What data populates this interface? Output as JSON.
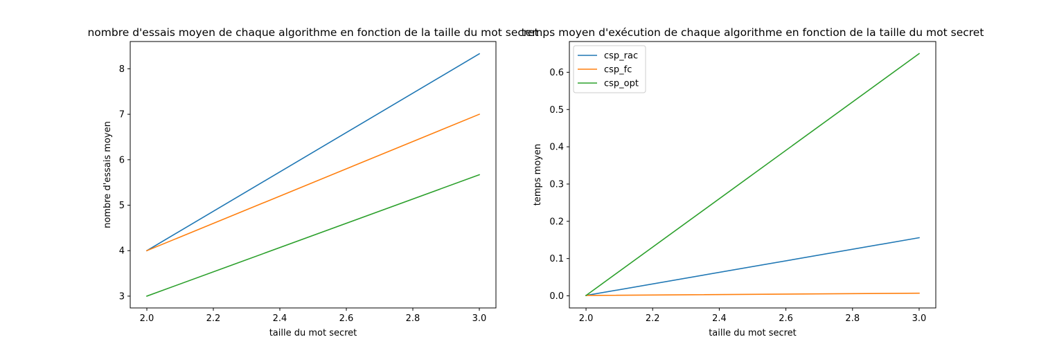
{
  "chart_data": [
    {
      "type": "line",
      "title": "nombre d'essais moyen de chaque algorithme en fonction de la taille du mot secret",
      "xlabel": "taille du mot secret",
      "ylabel": "nombre d'essais moyen",
      "x": [
        2,
        3
      ],
      "xlim": [
        1.95,
        3.05
      ],
      "ylim": [
        2.74,
        8.6
      ],
      "xticks": [
        2.0,
        2.2,
        2.4,
        2.6,
        2.8,
        3.0
      ],
      "xtick_labels": [
        "2.0",
        "2.2",
        "2.4",
        "2.6",
        "2.8",
        "3.0"
      ],
      "yticks": [
        3,
        4,
        5,
        6,
        7,
        8
      ],
      "ytick_labels": [
        "3",
        "4",
        "5",
        "6",
        "7",
        "8"
      ],
      "grid": false,
      "legend": null,
      "series": [
        {
          "values": [
            4,
            8.33
          ],
          "color": "#1f77b4"
        },
        {
          "values": [
            4,
            7.0
          ],
          "color": "#ff7f0e"
        },
        {
          "values": [
            3,
            5.67
          ],
          "color": "#2ca02c"
        }
      ]
    },
    {
      "type": "line",
      "title": "temps moyen d'exécution de chaque algorithme en fonction de la taille du mot secret",
      "xlabel": "taille du mot secret",
      "ylabel": "temps moyen",
      "x": [
        2,
        3
      ],
      "xlim": [
        1.95,
        3.05
      ],
      "ylim": [
        -0.0325,
        0.6825
      ],
      "xticks": [
        2.0,
        2.2,
        2.4,
        2.6,
        2.8,
        3.0
      ],
      "xtick_labels": [
        "2.0",
        "2.2",
        "2.4",
        "2.6",
        "2.8",
        "3.0"
      ],
      "yticks": [
        0.0,
        0.1,
        0.2,
        0.3,
        0.4,
        0.5,
        0.6
      ],
      "ytick_labels": [
        "0.0",
        "0.1",
        "0.2",
        "0.3",
        "0.4",
        "0.5",
        "0.6"
      ],
      "grid": false,
      "legend": "upper left",
      "series": [
        {
          "name": "csp_rac",
          "values": [
            0.001,
            0.156
          ],
          "color": "#1f77b4"
        },
        {
          "name": "csp_fc",
          "values": [
            0.001,
            0.007
          ],
          "color": "#ff7f0e"
        },
        {
          "name": "csp_opt",
          "values": [
            0.001,
            0.65
          ],
          "color": "#2ca02c"
        }
      ]
    }
  ]
}
